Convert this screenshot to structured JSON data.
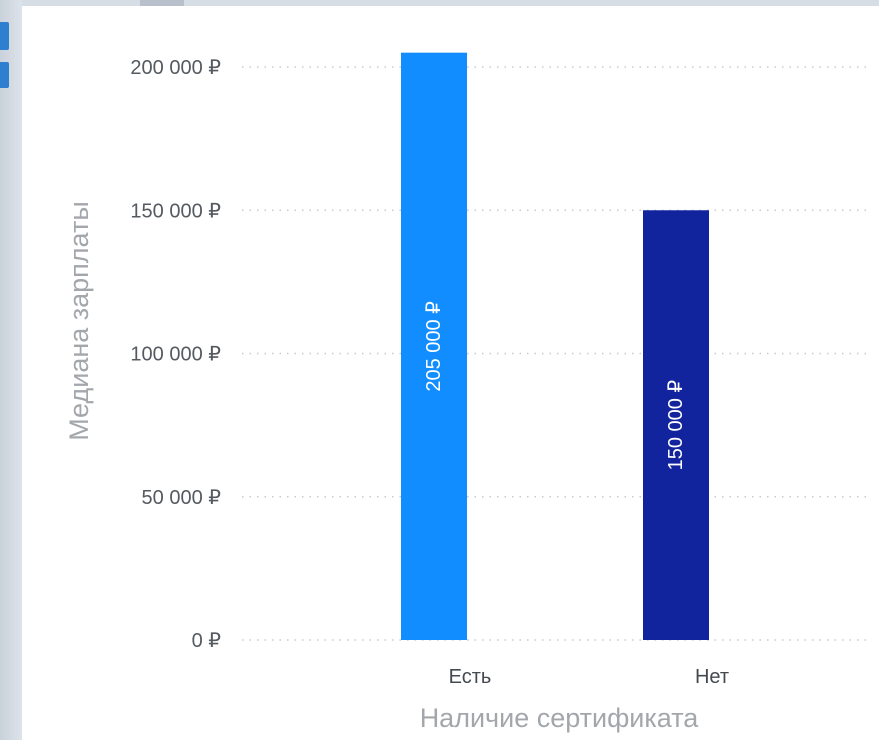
{
  "chart_data": {
    "type": "bar",
    "categories": [
      "Есть",
      "Нет"
    ],
    "values": [
      205000,
      150000
    ],
    "data_labels": [
      "205 000 ₽",
      "150 000 ₽"
    ],
    "bar_colors": [
      "#118dff",
      "#12239e"
    ],
    "xlabel": "Наличие сертификата",
    "ylabel": "Медиана зарплаты",
    "ylim": [
      0,
      200000
    ],
    "y_ticks": [
      0,
      50000,
      100000,
      150000,
      200000
    ],
    "y_tick_labels": [
      "0 ₽",
      "50 000 ₽",
      "100 000 ₽",
      "150 000 ₽",
      "200 000 ₽"
    ],
    "grid": true,
    "legend": false
  },
  "colors": {
    "gridline": "#c8cbce",
    "frame_accent": "#2f7fd1"
  }
}
